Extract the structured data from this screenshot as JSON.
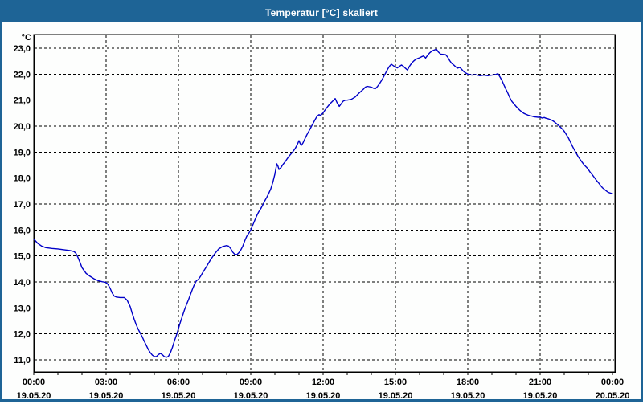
{
  "window": {
    "title": "Temperatur [°C] skaliert"
  },
  "colors": {
    "titlebar_bg": "#1e6496",
    "window_border": "#1e6496",
    "background": "#fdfefd",
    "plot_border": "#000000",
    "gridline": "#000000",
    "axis_text": "#000000",
    "series_line": "#0000c8",
    "title_text": "#ffffff"
  },
  "chart_data": {
    "type": "line",
    "title": "Temperatur [°C] skaliert",
    "ylabel": "°C",
    "y_unit_label": "°C",
    "ylim": [
      11,
      23
    ],
    "xlim_hours": [
      0,
      24
    ],
    "grid": "dashed",
    "legend": "none",
    "y_ticks": [
      {
        "value": 23,
        "label": "23,0"
      },
      {
        "value": 22,
        "label": "22,0"
      },
      {
        "value": 21,
        "label": "21,0"
      },
      {
        "value": 20,
        "label": "20,0"
      },
      {
        "value": 19,
        "label": "19,0"
      },
      {
        "value": 18,
        "label": "18,0"
      },
      {
        "value": 17,
        "label": "17,0"
      },
      {
        "value": 16,
        "label": "16,0"
      },
      {
        "value": 15,
        "label": "15,0"
      },
      {
        "value": 14,
        "label": "14,0"
      },
      {
        "value": 13,
        "label": "13,0"
      },
      {
        "value": 12,
        "label": "12,0"
      },
      {
        "value": 11,
        "label": "11,0"
      }
    ],
    "x_ticks": [
      {
        "hour": 0,
        "time": "00:00",
        "date": "19.05.20"
      },
      {
        "hour": 3,
        "time": "03:00",
        "date": "19.05.20"
      },
      {
        "hour": 6,
        "time": "06:00",
        "date": "19.05.20"
      },
      {
        "hour": 9,
        "time": "09:00",
        "date": "19.05.20"
      },
      {
        "hour": 12,
        "time": "12:00",
        "date": "19.05.20"
      },
      {
        "hour": 15,
        "time": "15:00",
        "date": "19.05.20"
      },
      {
        "hour": 18,
        "time": "18:00",
        "date": "19.05.20"
      },
      {
        "hour": 21,
        "time": "21:00",
        "date": "19.05.20"
      },
      {
        "hour": 24,
        "time": "00:00",
        "date": "20.05.20"
      }
    ],
    "series": [
      {
        "name": "Temperatur",
        "color": "#0000c8",
        "points": [
          [
            0.0,
            15.65
          ],
          [
            0.17,
            15.48
          ],
          [
            0.33,
            15.38
          ],
          [
            0.5,
            15.32
          ],
          [
            0.75,
            15.29
          ],
          [
            1.0,
            15.27
          ],
          [
            1.25,
            15.24
          ],
          [
            1.5,
            15.21
          ],
          [
            1.67,
            15.17
          ],
          [
            1.75,
            15.1
          ],
          [
            1.83,
            14.95
          ],
          [
            1.92,
            14.75
          ],
          [
            2.0,
            14.55
          ],
          [
            2.17,
            14.33
          ],
          [
            2.33,
            14.22
          ],
          [
            2.5,
            14.12
          ],
          [
            2.67,
            14.05
          ],
          [
            2.83,
            14.01
          ],
          [
            3.0,
            13.98
          ],
          [
            3.08,
            13.9
          ],
          [
            3.17,
            13.75
          ],
          [
            3.25,
            13.58
          ],
          [
            3.33,
            13.46
          ],
          [
            3.42,
            13.42
          ],
          [
            3.58,
            13.4
          ],
          [
            3.75,
            13.4
          ],
          [
            3.87,
            13.3
          ],
          [
            4.0,
            13.05
          ],
          [
            4.08,
            12.8
          ],
          [
            4.17,
            12.55
          ],
          [
            4.25,
            12.35
          ],
          [
            4.33,
            12.18
          ],
          [
            4.42,
            12.02
          ],
          [
            4.5,
            11.88
          ],
          [
            4.58,
            11.72
          ],
          [
            4.67,
            11.55
          ],
          [
            4.75,
            11.4
          ],
          [
            4.83,
            11.28
          ],
          [
            4.92,
            11.18
          ],
          [
            5.0,
            11.13
          ],
          [
            5.08,
            11.12
          ],
          [
            5.17,
            11.2
          ],
          [
            5.25,
            11.25
          ],
          [
            5.33,
            11.2
          ],
          [
            5.42,
            11.12
          ],
          [
            5.5,
            11.1
          ],
          [
            5.58,
            11.13
          ],
          [
            5.67,
            11.28
          ],
          [
            5.75,
            11.48
          ],
          [
            5.83,
            11.72
          ],
          [
            5.92,
            11.96
          ],
          [
            6.0,
            12.2
          ],
          [
            6.08,
            12.45
          ],
          [
            6.17,
            12.7
          ],
          [
            6.25,
            12.92
          ],
          [
            6.33,
            13.12
          ],
          [
            6.42,
            13.32
          ],
          [
            6.5,
            13.52
          ],
          [
            6.58,
            13.72
          ],
          [
            6.67,
            13.92
          ],
          [
            6.75,
            14.05
          ],
          [
            6.83,
            14.1
          ],
          [
            6.92,
            14.22
          ],
          [
            7.0,
            14.35
          ],
          [
            7.17,
            14.6
          ],
          [
            7.33,
            14.85
          ],
          [
            7.5,
            15.08
          ],
          [
            7.67,
            15.27
          ],
          [
            7.83,
            15.36
          ],
          [
            8.0,
            15.4
          ],
          [
            8.08,
            15.38
          ],
          [
            8.17,
            15.28
          ],
          [
            8.25,
            15.15
          ],
          [
            8.33,
            15.07
          ],
          [
            8.42,
            15.05
          ],
          [
            8.5,
            15.12
          ],
          [
            8.58,
            15.22
          ],
          [
            8.67,
            15.38
          ],
          [
            8.75,
            15.58
          ],
          [
            8.83,
            15.75
          ],
          [
            8.92,
            15.88
          ],
          [
            9.0,
            16.0
          ],
          [
            9.08,
            16.18
          ],
          [
            9.17,
            16.38
          ],
          [
            9.25,
            16.55
          ],
          [
            9.33,
            16.7
          ],
          [
            9.42,
            16.83
          ],
          [
            9.5,
            16.97
          ],
          [
            9.58,
            17.12
          ],
          [
            9.67,
            17.27
          ],
          [
            9.75,
            17.42
          ],
          [
            9.83,
            17.58
          ],
          [
            9.92,
            17.85
          ],
          [
            10.0,
            18.15
          ],
          [
            10.05,
            18.4
          ],
          [
            10.08,
            18.55
          ],
          [
            10.13,
            18.45
          ],
          [
            10.17,
            18.33
          ],
          [
            10.25,
            18.4
          ],
          [
            10.33,
            18.52
          ],
          [
            10.42,
            18.62
          ],
          [
            10.5,
            18.73
          ],
          [
            10.58,
            18.83
          ],
          [
            10.67,
            18.93
          ],
          [
            10.75,
            19.02
          ],
          [
            10.83,
            19.12
          ],
          [
            10.92,
            19.27
          ],
          [
            11.0,
            19.44
          ],
          [
            11.05,
            19.33
          ],
          [
            11.1,
            19.26
          ],
          [
            11.17,
            19.36
          ],
          [
            11.25,
            19.52
          ],
          [
            11.33,
            19.67
          ],
          [
            11.42,
            19.82
          ],
          [
            11.5,
            19.96
          ],
          [
            11.58,
            20.1
          ],
          [
            11.67,
            20.25
          ],
          [
            11.75,
            20.38
          ],
          [
            11.83,
            20.44
          ],
          [
            11.9,
            20.41
          ],
          [
            12.0,
            20.51
          ],
          [
            12.08,
            20.62
          ],
          [
            12.17,
            20.73
          ],
          [
            12.25,
            20.82
          ],
          [
            12.33,
            20.9
          ],
          [
            12.42,
            20.98
          ],
          [
            12.5,
            21.06
          ],
          [
            12.58,
            20.9
          ],
          [
            12.67,
            20.76
          ],
          [
            12.75,
            20.86
          ],
          [
            12.83,
            20.96
          ],
          [
            12.92,
            21.0
          ],
          [
            13.0,
            21.0
          ],
          [
            13.17,
            21.03
          ],
          [
            13.33,
            21.12
          ],
          [
            13.5,
            21.28
          ],
          [
            13.67,
            21.42
          ],
          [
            13.75,
            21.5
          ],
          [
            13.83,
            21.53
          ],
          [
            14.0,
            21.5
          ],
          [
            14.08,
            21.46
          ],
          [
            14.17,
            21.44
          ],
          [
            14.25,
            21.52
          ],
          [
            14.33,
            21.62
          ],
          [
            14.42,
            21.75
          ],
          [
            14.5,
            21.88
          ],
          [
            14.58,
            22.02
          ],
          [
            14.67,
            22.18
          ],
          [
            14.75,
            22.3
          ],
          [
            14.83,
            22.38
          ],
          [
            14.92,
            22.32
          ],
          [
            15.0,
            22.28
          ],
          [
            15.08,
            22.24
          ],
          [
            15.17,
            22.3
          ],
          [
            15.25,
            22.35
          ],
          [
            15.33,
            22.3
          ],
          [
            15.42,
            22.22
          ],
          [
            15.5,
            22.16
          ],
          [
            15.58,
            22.3
          ],
          [
            15.67,
            22.42
          ],
          [
            15.75,
            22.5
          ],
          [
            15.83,
            22.56
          ],
          [
            15.92,
            22.6
          ],
          [
            16.0,
            22.63
          ],
          [
            16.08,
            22.67
          ],
          [
            16.17,
            22.7
          ],
          [
            16.25,
            22.62
          ],
          [
            16.33,
            22.72
          ],
          [
            16.42,
            22.82
          ],
          [
            16.5,
            22.88
          ],
          [
            16.58,
            22.92
          ],
          [
            16.7,
            22.96
          ],
          [
            16.78,
            22.85
          ],
          [
            16.87,
            22.77
          ],
          [
            17.0,
            22.76
          ],
          [
            17.08,
            22.75
          ],
          [
            17.17,
            22.65
          ],
          [
            17.25,
            22.52
          ],
          [
            17.33,
            22.42
          ],
          [
            17.42,
            22.35
          ],
          [
            17.5,
            22.28
          ],
          [
            17.58,
            22.23
          ],
          [
            17.67,
            22.26
          ],
          [
            17.75,
            22.18
          ],
          [
            17.83,
            22.1
          ],
          [
            17.92,
            22.04
          ],
          [
            18.0,
            22.0
          ],
          [
            18.17,
            21.96
          ],
          [
            18.33,
            21.98
          ],
          [
            18.5,
            21.94
          ],
          [
            18.67,
            21.96
          ],
          [
            18.83,
            21.94
          ],
          [
            19.0,
            21.96
          ],
          [
            19.17,
            21.99
          ],
          [
            19.25,
            22.02
          ],
          [
            19.33,
            21.9
          ],
          [
            19.42,
            21.75
          ],
          [
            19.5,
            21.58
          ],
          [
            19.58,
            21.42
          ],
          [
            19.67,
            21.25
          ],
          [
            19.75,
            21.08
          ],
          [
            19.83,
            20.95
          ],
          [
            19.92,
            20.85
          ],
          [
            20.0,
            20.76
          ],
          [
            20.08,
            20.68
          ],
          [
            20.17,
            20.6
          ],
          [
            20.25,
            20.54
          ],
          [
            20.33,
            20.49
          ],
          [
            20.42,
            20.45
          ],
          [
            20.5,
            20.42
          ],
          [
            20.58,
            20.4
          ],
          [
            20.67,
            20.38
          ],
          [
            20.75,
            20.36
          ],
          [
            20.83,
            20.35
          ],
          [
            20.92,
            20.34
          ],
          [
            21.0,
            20.35
          ],
          [
            21.08,
            20.31
          ],
          [
            21.17,
            20.33
          ],
          [
            21.25,
            20.3
          ],
          [
            21.33,
            20.28
          ],
          [
            21.42,
            20.25
          ],
          [
            21.5,
            20.22
          ],
          [
            21.58,
            20.17
          ],
          [
            21.67,
            20.1
          ],
          [
            21.75,
            20.04
          ],
          [
            21.83,
            19.97
          ],
          [
            21.92,
            19.89
          ],
          [
            22.0,
            19.8
          ],
          [
            22.08,
            19.68
          ],
          [
            22.17,
            19.55
          ],
          [
            22.25,
            19.4
          ],
          [
            22.33,
            19.24
          ],
          [
            22.42,
            19.08
          ],
          [
            22.5,
            18.95
          ],
          [
            22.58,
            18.82
          ],
          [
            22.67,
            18.7
          ],
          [
            22.75,
            18.6
          ],
          [
            22.83,
            18.5
          ],
          [
            22.92,
            18.42
          ],
          [
            23.0,
            18.33
          ],
          [
            23.08,
            18.22
          ],
          [
            23.17,
            18.12
          ],
          [
            23.25,
            18.02
          ],
          [
            23.33,
            17.92
          ],
          [
            23.42,
            17.82
          ],
          [
            23.5,
            17.72
          ],
          [
            23.58,
            17.63
          ],
          [
            23.67,
            17.56
          ],
          [
            23.75,
            17.5
          ],
          [
            23.83,
            17.45
          ],
          [
            23.92,
            17.42
          ],
          [
            24.0,
            17.4
          ]
        ]
      }
    ]
  }
}
